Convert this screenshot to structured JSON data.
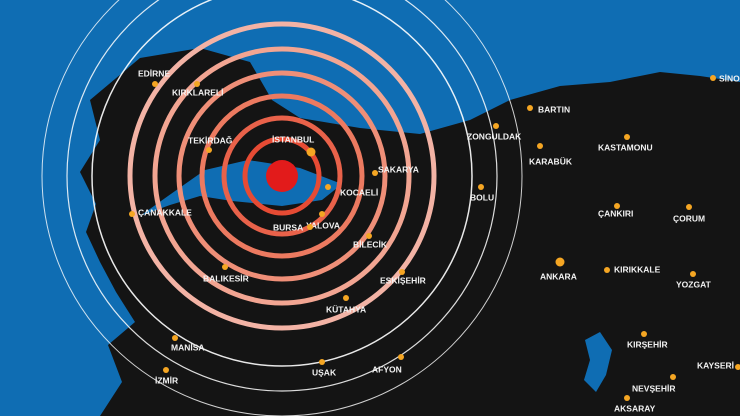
{
  "cities": [
    {
      "label": "EDİRNE"
    },
    {
      "label": "KIRKLARELİ"
    },
    {
      "label": "TEKİRDAĞ"
    },
    {
      "label": "İSTANBUL"
    },
    {
      "label": "SAKARYA"
    },
    {
      "label": "KOCAELİ"
    },
    {
      "label": "YALOVA"
    },
    {
      "label": "BURSA"
    },
    {
      "label": "ÇANAKKALE"
    },
    {
      "label": "BİLECİK"
    },
    {
      "label": "BALIKESİR"
    },
    {
      "label": "ESKİŞEHİR"
    },
    {
      "label": "KÜTAHYA"
    },
    {
      "label": "MANİSA"
    },
    {
      "label": "İZMİR"
    },
    {
      "label": "UŞAK"
    },
    {
      "label": "AFYON"
    },
    {
      "label": "ZONGULDAK"
    },
    {
      "label": "BARTIN"
    },
    {
      "label": "KARABÜK"
    },
    {
      "label": "KASTAMONU"
    },
    {
      "label": "BOLU"
    },
    {
      "label": "ÇANKIRI"
    },
    {
      "label": "ÇORUM"
    },
    {
      "label": "ANKARA"
    },
    {
      "label": "KIRIKKALE"
    },
    {
      "label": "YOZGAT"
    },
    {
      "label": "KIRŞEHİR"
    },
    {
      "label": "KAYSERİ"
    },
    {
      "label": "NEVŞEHİR"
    },
    {
      "label": "AKSARAY"
    },
    {
      "label": "SİNOP"
    }
  ]
}
